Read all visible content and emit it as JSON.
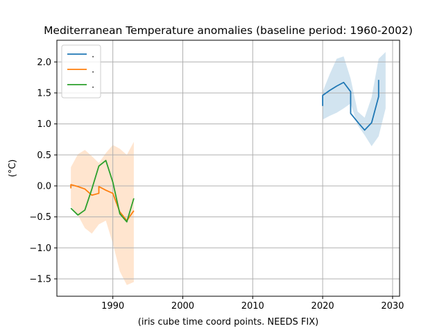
{
  "chart_data": {
    "type": "line",
    "title": "Mediterranean Temperature anomalies (baseline period: 1960-2002)",
    "xlabel": "(iris cube time coord points. NEEDS FIX)",
    "ylabel": "(°C)",
    "xlim": [
      1982,
      2031
    ],
    "ylim": [
      -1.78,
      2.35
    ],
    "xticks": [
      1990,
      2000,
      2010,
      2020,
      2030
    ],
    "yticks": [
      -1.5,
      -1.0,
      -0.5,
      0.0,
      0.5,
      1.0,
      1.5,
      2.0
    ],
    "xtick_labels": [
      "1990",
      "2000",
      "2010",
      "2020",
      "2030"
    ],
    "ytick_labels": [
      "−1.5",
      "−1.0",
      "−0.5",
      "0.0",
      "0.5",
      "1.0",
      "1.5",
      "2.0"
    ],
    "grid": true,
    "legend_position": "top-left",
    "series": [
      {
        "name": ".",
        "color": "#1f77b4",
        "x": [
          2020,
          2020,
          2021,
          2022,
          2023,
          2024,
          2024,
          2025,
          2026,
          2027,
          2028,
          2028
        ],
        "y": [
          1.29,
          1.46,
          1.54,
          1.61,
          1.67,
          1.52,
          1.17,
          1.03,
          0.9,
          1.02,
          1.44,
          1.71
        ],
        "band": {
          "color": "#1f77b4",
          "x": [
            2020,
            2021,
            2022,
            2023,
            2024,
            2025,
            2026,
            2027,
            2028,
            2029
          ],
          "upper": [
            1.52,
            1.8,
            2.05,
            2.09,
            1.73,
            1.2,
            1.1,
            1.43,
            2.05,
            2.16
          ],
          "lower": [
            1.07,
            1.13,
            1.18,
            1.25,
            1.33,
            0.98,
            0.82,
            0.64,
            0.8,
            1.25
          ]
        }
      },
      {
        "name": ".",
        "color": "#ff7f0e",
        "x": [
          1984,
          1984,
          1985,
          1986,
          1987,
          1988,
          1988,
          1989,
          1990,
          1991,
          1992,
          1993
        ],
        "y": [
          -0.04,
          0.02,
          -0.01,
          -0.05,
          -0.15,
          -0.12,
          -0.01,
          -0.07,
          -0.12,
          -0.42,
          -0.56,
          -0.4
        ],
        "band": {
          "color": "#ff7f0e",
          "x": [
            1984,
            1985,
            1986,
            1987,
            1988,
            1989,
            1990,
            1991,
            1992,
            1993
          ],
          "upper": [
            0.3,
            0.51,
            0.58,
            0.48,
            0.37,
            0.53,
            0.66,
            0.6,
            0.5,
            0.71
          ],
          "lower": [
            -0.33,
            -0.47,
            -0.68,
            -0.77,
            -0.62,
            -0.56,
            -0.93,
            -1.38,
            -1.6,
            -1.55
          ]
        }
      },
      {
        "name": ".",
        "color": "#2ca02c",
        "x": [
          1984,
          1985,
          1986,
          1987,
          1988,
          1989,
          1990,
          1991,
          1992,
          1993
        ],
        "y": [
          -0.36,
          -0.47,
          -0.39,
          -0.05,
          0.32,
          0.41,
          0.06,
          -0.45,
          -0.58,
          -0.2
        ]
      }
    ]
  }
}
